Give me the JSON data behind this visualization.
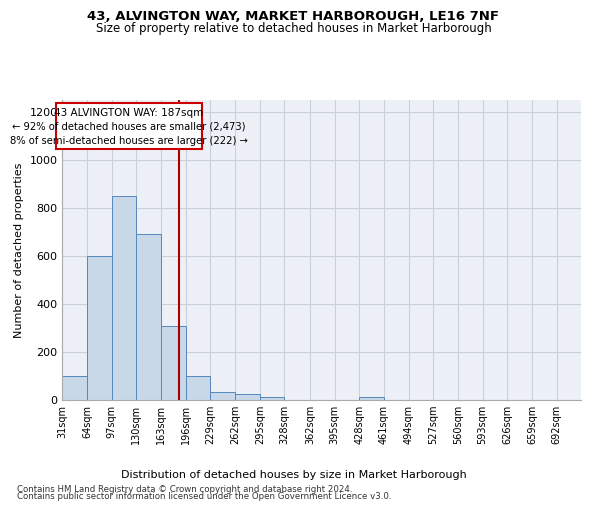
{
  "title1": "43, ALVINGTON WAY, MARKET HARBOROUGH, LE16 7NF",
  "title2": "Size of property relative to detached houses in Market Harborough",
  "xlabel": "Distribution of detached houses by size in Market Harborough",
  "ylabel": "Number of detached properties",
  "footer1": "Contains HM Land Registry data © Crown copyright and database right 2024.",
  "footer2": "Contains public sector information licensed under the Open Government Licence v3.0.",
  "annotation_line1": "43 ALVINGTON WAY: 187sqm",
  "annotation_line2": "← 92% of detached houses are smaller (2,473)",
  "annotation_line3": "8% of semi-detached houses are larger (222) →",
  "bar_color": "#c8d8e8",
  "bar_edge_color": "#5588bb",
  "bin_starts": [
    31,
    64,
    97,
    130,
    163,
    196,
    229,
    262,
    295,
    328,
    362,
    395,
    428,
    461,
    494,
    527,
    560,
    593,
    626,
    659,
    692
  ],
  "bar_heights": [
    100,
    600,
    850,
    690,
    305,
    100,
    30,
    22,
    10,
    0,
    0,
    0,
    12,
    0,
    0,
    0,
    0,
    0,
    0,
    0
  ],
  "bin_labels": [
    "31sqm",
    "64sqm",
    "97sqm",
    "130sqm",
    "163sqm",
    "196sqm",
    "229sqm",
    "262sqm",
    "295sqm",
    "328sqm",
    "362sqm",
    "395sqm",
    "428sqm",
    "461sqm",
    "494sqm",
    "527sqm",
    "560sqm",
    "593sqm",
    "626sqm",
    "659sqm",
    "692sqm"
  ],
  "ylim": [
    0,
    1250
  ],
  "yticks": [
    0,
    200,
    400,
    600,
    800,
    1000,
    1200
  ],
  "vline_color": "#aa0000",
  "vline_x": 187,
  "box_color": "#cc0000",
  "grid_color": "#c8d0dc",
  "background_color": "#edf1f7"
}
